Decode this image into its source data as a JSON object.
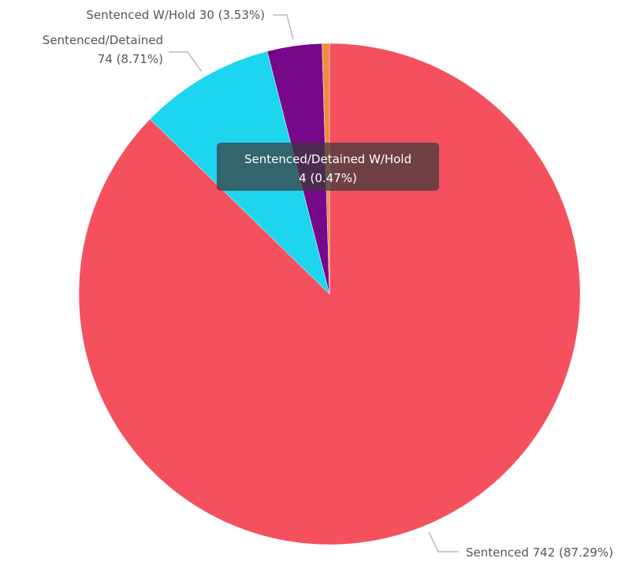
{
  "chart_data": {
    "type": "pie",
    "slices": [
      {
        "name": "Sentenced",
        "value": 742,
        "percent": "87.29%",
        "color": "#f4505e",
        "label_line1": "Sentenced 742 (87.29%)",
        "label_line2": ""
      },
      {
        "name": "Sentenced/Detained",
        "value": 74,
        "percent": "8.71%",
        "color": "#1dd5ef",
        "label_line1": "Sentenced/Detained",
        "label_line2": "74 (8.71%)"
      },
      {
        "name": "Sentenced W/Hold",
        "value": 30,
        "percent": "3.53%",
        "color": "#77088a",
        "label_line1": "Sentenced W/Hold 30 (3.53%)",
        "label_line2": ""
      },
      {
        "name": "Sentenced/Detained W/Hold",
        "value": 4,
        "percent": "0.47%",
        "color": "#f5893c",
        "label_line1": "",
        "label_line2": ""
      }
    ],
    "start_angle_deg": 0,
    "direction": "clockwise"
  },
  "tooltip": {
    "line1": "Sentenced/Detained W/Hold",
    "line2": "4 (0.47%)"
  }
}
